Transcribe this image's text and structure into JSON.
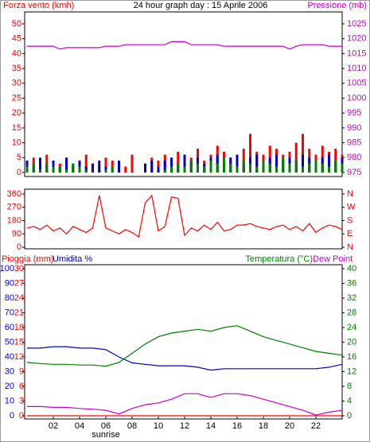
{
  "chart_data": [
    {
      "type": "combo",
      "title": "24 hour graph day : 15 Aprile 2006",
      "left_label": "Forza vento (kmh)",
      "right_label": "Pressione (mb)",
      "xlim": [
        0,
        24
      ],
      "x": [
        0,
        0.5,
        1,
        1.5,
        2,
        2.5,
        3,
        3.5,
        4,
        4.5,
        5,
        5.5,
        6,
        6.5,
        7,
        7.5,
        8,
        8.5,
        9,
        9.5,
        10,
        10.5,
        11,
        11.5,
        12,
        12.5,
        13,
        13.5,
        14,
        14.5,
        15,
        15.5,
        16,
        16.5,
        17,
        17.5,
        18,
        18.5,
        19,
        19.5,
        20,
        20.5,
        21,
        21.5,
        22,
        22.5,
        23,
        23.5,
        24
      ],
      "ylim": [
        0,
        50
      ],
      "yticks": [
        0,
        5,
        10,
        15,
        20,
        25,
        30,
        35,
        40,
        45,
        50
      ],
      "left_color": "#ff0000",
      "y2lim": [
        975,
        1025
      ],
      "y2ticks": [
        975,
        980,
        985,
        990,
        995,
        1000,
        1005,
        1010,
        1015,
        1020,
        1025
      ],
      "right_color": "#cc00cc",
      "series": [
        {
          "kind": "bar",
          "color": "#ff0000",
          "values": [
            3,
            5,
            2,
            6,
            4,
            3,
            5,
            2,
            4,
            6,
            3,
            2,
            5,
            4,
            3,
            2,
            6,
            0,
            3,
            5,
            4,
            6,
            5,
            7,
            6,
            5,
            8,
            4,
            6,
            9,
            7,
            5,
            6,
            8,
            13,
            7,
            6,
            9,
            8,
            6,
            7,
            10,
            13,
            8,
            6,
            9,
            7,
            8,
            6
          ]
        },
        {
          "kind": "bar",
          "color": "#0000cc",
          "values": [
            4,
            2,
            5,
            3,
            4,
            2,
            5,
            3,
            4,
            2,
            3,
            4,
            2,
            0,
            4,
            0,
            0,
            0,
            3,
            4,
            2,
            4,
            5,
            3,
            6,
            4,
            5,
            3,
            5,
            6,
            4,
            5,
            6,
            3,
            5,
            6,
            4,
            5,
            6,
            4,
            5,
            4,
            6,
            5,
            4,
            5,
            6,
            4,
            5
          ]
        },
        {
          "kind": "bar",
          "color": "#008000",
          "values": [
            2,
            3,
            1,
            3,
            2,
            2,
            1,
            3,
            2,
            1,
            0,
            0,
            1,
            2,
            0,
            0,
            0,
            0,
            0,
            0,
            0,
            1,
            2,
            3,
            2,
            4,
            3,
            2,
            4,
            3,
            5,
            3,
            2,
            4,
            3,
            2,
            4,
            3,
            2,
            5,
            3,
            4,
            2,
            3,
            4,
            3,
            2,
            4,
            3
          ]
        },
        {
          "kind": "line",
          "axis": "y2",
          "color": "#cc00cc",
          "values": [
            1017.5,
            1017.5,
            1017.5,
            1017.5,
            1017.5,
            1016.5,
            1017,
            1017,
            1017,
            1017,
            1017,
            1017,
            1017.5,
            1017.5,
            1017.5,
            1018,
            1018,
            1018,
            1018,
            1018,
            1018,
            1018,
            1019,
            1019,
            1019,
            1018,
            1018,
            1018,
            1018,
            1018,
            1017.5,
            1017.5,
            1017.5,
            1017.5,
            1017.5,
            1017.5,
            1017.5,
            1017.5,
            1017.5,
            1017.5,
            1016.5,
            1017.5,
            1018,
            1018,
            1018,
            1018,
            1017.5,
            1017.5,
            1017.5
          ]
        }
      ]
    },
    {
      "type": "combo",
      "xlim": [
        0,
        24
      ],
      "x": [
        0,
        0.5,
        1,
        1.5,
        2,
        2.5,
        3,
        3.5,
        4,
        4.5,
        5,
        5.5,
        6,
        6.5,
        7,
        7.5,
        8,
        8.5,
        9,
        9.5,
        10,
        10.5,
        11,
        11.5,
        12,
        12.5,
        13,
        13.5,
        14,
        14.5,
        15,
        15.5,
        16,
        16.5,
        17,
        17.5,
        18,
        18.5,
        19,
        19.5,
        20,
        20.5,
        21,
        21.5,
        22,
        22.5,
        23,
        23.5,
        24
      ],
      "ylim": [
        0,
        360
      ],
      "yticks": [
        0,
        90,
        180,
        270,
        360
      ],
      "left_color": "#ff0000",
      "y2lim": [
        0,
        360
      ],
      "y2ticks": [
        {
          "value": 0,
          "label": "N"
        },
        {
          "value": 90,
          "label": "E"
        },
        {
          "value": 180,
          "label": "S"
        },
        {
          "value": 270,
          "label": "W"
        },
        {
          "value": 360,
          "label": "N"
        }
      ],
      "right_color": "#ff0000",
      "series": [
        {
          "kind": "line",
          "color": "#ff0000",
          "values": [
            130,
            140,
            120,
            150,
            110,
            130,
            90,
            140,
            120,
            100,
            130,
            350,
            130,
            110,
            90,
            120,
            100,
            70,
            300,
            350,
            110,
            140,
            340,
            330,
            80,
            130,
            110,
            150,
            120,
            170,
            110,
            120,
            150,
            150,
            160,
            140,
            130,
            120,
            140,
            150,
            120,
            140,
            110,
            160,
            100,
            130,
            150,
            140,
            120
          ]
        }
      ]
    },
    {
      "type": "combo",
      "labels": [
        {
          "text": "Pioggia (mm)",
          "color": "#ff0000"
        },
        {
          "text": "Umidita %",
          "color": "#0000cc"
        },
        {
          "text": "Temperatura (°C)",
          "color": "#008000"
        },
        {
          "text": "Dew Point",
          "color": "#cc00cc"
        }
      ],
      "xlim": [
        0,
        24
      ],
      "xticks": [
        {
          "value": 2,
          "label": "02"
        },
        {
          "value": 4,
          "label": "04"
        },
        {
          "value": 6,
          "label": "06"
        },
        {
          "value": 8,
          "label": "08"
        },
        10,
        12,
        14,
        16,
        18,
        20,
        22
      ],
      "annotation": {
        "text": "sunrise",
        "x": 6
      },
      "x": [
        0,
        1,
        2,
        3,
        4,
        5,
        6,
        7,
        8,
        9,
        10,
        11,
        12,
        13,
        14,
        15,
        16,
        17,
        18,
        19,
        20,
        21,
        22,
        23,
        24
      ],
      "ylim": [
        0,
        100
      ],
      "yticks": [
        0,
        10,
        20,
        30,
        40,
        50,
        60,
        70,
        80,
        90,
        100
      ],
      "left_color": "#0000cc",
      "rain_ylim": [
        0,
        30
      ],
      "rain_yticks": [
        0,
        3,
        6,
        9,
        12,
        15,
        18,
        21,
        24,
        27,
        30
      ],
      "rain_color": "#ff0000",
      "y2lim": [
        0,
        40
      ],
      "y2ticks": [
        0,
        4,
        8,
        12,
        16,
        20,
        24,
        28,
        32,
        36,
        40
      ],
      "right_color": "#008000",
      "series": [
        {
          "kind": "line",
          "axis": "rain",
          "color": "#ff0000",
          "values": [
            0,
            0,
            0,
            0,
            0,
            0,
            0,
            0,
            0,
            0,
            0,
            0,
            0,
            0,
            0,
            0,
            0,
            0,
            0,
            0,
            0,
            0,
            0,
            0,
            0
          ]
        },
        {
          "kind": "line",
          "axis": "y",
          "color": "#0000cc",
          "values": [
            46,
            46,
            47,
            47,
            46,
            46,
            45,
            40,
            36,
            35,
            34,
            34,
            34,
            33,
            31,
            32,
            32,
            32,
            32,
            32,
            32,
            32,
            32,
            33,
            35
          ]
        },
        {
          "kind": "line",
          "axis": "y2",
          "color": "#008000",
          "values": [
            14.5,
            14.2,
            14,
            14,
            13.8,
            13.8,
            13.5,
            14.5,
            17,
            19.5,
            21.5,
            22.5,
            23,
            23.5,
            23,
            24,
            24.5,
            23,
            21.5,
            20.5,
            19.5,
            18.5,
            17.5,
            17,
            16.5
          ]
        },
        {
          "kind": "line",
          "axis": "y2",
          "color": "#cc00cc",
          "values": [
            2.5,
            2.5,
            2.3,
            2.3,
            2,
            1.8,
            1.5,
            0.5,
            2,
            3,
            3.5,
            4.5,
            6,
            6,
            5,
            6,
            6,
            5.5,
            4.5,
            3.5,
            2.5,
            1.5,
            0.2,
            1,
            1.5
          ]
        }
      ]
    }
  ]
}
